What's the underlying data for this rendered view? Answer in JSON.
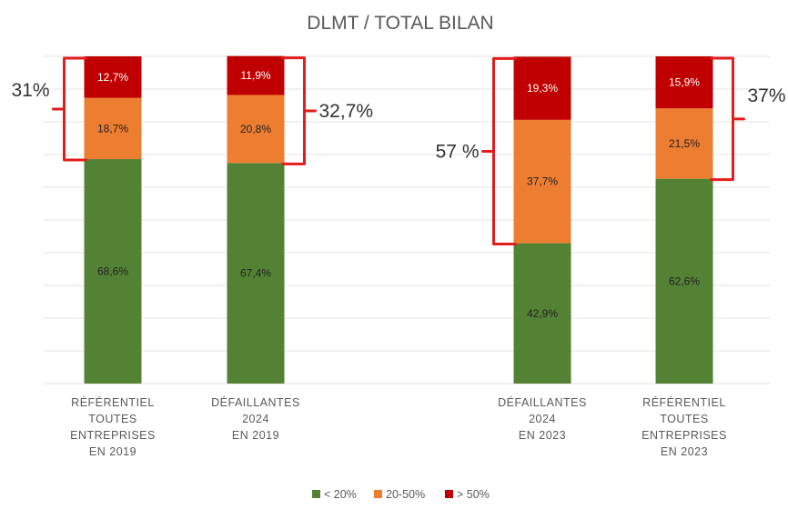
{
  "chart_data": {
    "type": "bar",
    "stacked": true,
    "title": "DLMT / TOTAL BILAN",
    "categories": [
      [
        "RÉFÉRENTIEL",
        "TOUTES",
        "ENTREPRISES",
        "EN 2019"
      ],
      [
        "DÉFAILLANTES",
        "2024",
        "EN 2019"
      ],
      [
        "DÉFAILLANTES",
        "2024",
        "EN 2023"
      ],
      [
        "RÉFÉRENTIEL",
        "TOUTES",
        "ENTREPRISES",
        "EN 2023"
      ]
    ],
    "series": [
      {
        "name": "< 20%",
        "color": "#548235",
        "values": [
          68.6,
          67.4,
          42.9,
          62.6
        ],
        "labels": [
          "68,6%",
          "67,4%",
          "42,9%",
          "62,6%"
        ]
      },
      {
        "name": "20-50%",
        "color": "#ed7d31",
        "values": [
          18.7,
          20.8,
          37.7,
          21.5
        ],
        "labels": [
          "18,7%",
          "20,8%",
          "37,7%",
          "21,5%"
        ]
      },
      {
        "name": "> 50%",
        "color": "#c00000",
        "values": [
          12.7,
          11.9,
          19.3,
          15.9
        ],
        "labels": [
          "12,7%",
          "11,9%",
          "19,3%",
          "15,9%"
        ]
      }
    ],
    "ylim": [
      0,
      100
    ],
    "grid": true,
    "legend_position": "bottom",
    "annotations": [
      {
        "bar": 0,
        "side": "left",
        "label": "31%"
      },
      {
        "bar": 1,
        "side": "right",
        "label": "32,7%"
      },
      {
        "bar": 2,
        "side": "left",
        "label": "57 %"
      },
      {
        "bar": 3,
        "side": "right",
        "label": "37%"
      }
    ],
    "bracket_color": "#e31c1c"
  }
}
